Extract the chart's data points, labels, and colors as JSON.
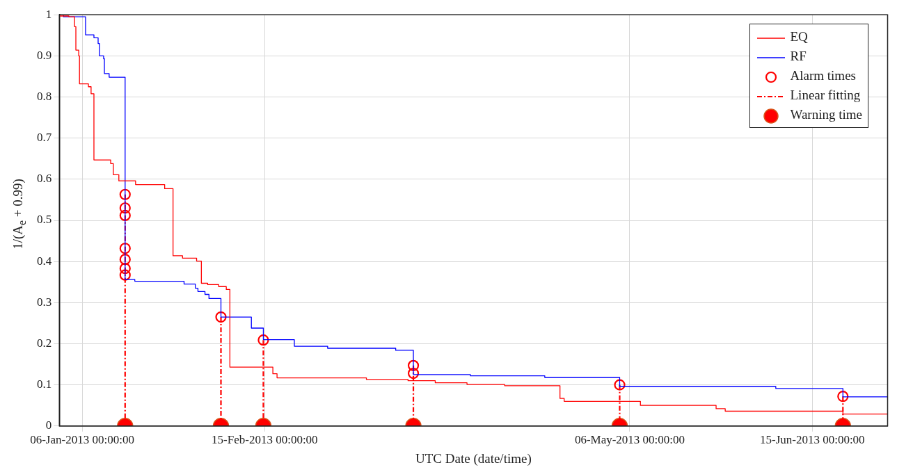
{
  "chart_data": {
    "type": "step",
    "xlabel": "UTC Date (date/time)",
    "ylabel": "1/(A$_{e}$ + 0.99)",
    "xlim": [
      "2013-01-01",
      "2013-07-01T12:00"
    ],
    "xticks": [
      {
        "value": "2013-01-06",
        "label": "06-Jan-2013 00:00:00"
      },
      {
        "value": "2013-02-15",
        "label": "15-Feb-2013 00:00:00"
      },
      {
        "value": "2013-05-06",
        "label": "06-May-2013 00:00:00"
      },
      {
        "value": "2013-06-15",
        "label": "15-Jun-2013 00:00:00"
      }
    ],
    "ylim": [
      0,
      1
    ],
    "yticks": [
      0,
      0.1,
      0.2,
      0.3,
      0.4,
      0.5,
      0.6,
      0.7,
      0.8,
      0.9,
      1
    ],
    "grid": true,
    "legend": "top right",
    "marker": "none",
    "series": [
      {
        "name": "EQ",
        "color": "#ff0000",
        "x": [
          "2013-01-01",
          "2013-01-03T02:00",
          "2013-01-04T08:00",
          "2013-01-04T15:00",
          "2013-01-05T06:00",
          "2013-01-05T10:00",
          "2013-01-07T09:00",
          "2013-01-07T23:00",
          "2013-01-08T14:00",
          "2013-01-12T06:00",
          "2013-01-12T20:00",
          "2013-01-14T01:00",
          "2013-01-17T17:00",
          "2013-01-24T02:00",
          "2013-01-25T22:00",
          "2013-01-28",
          "2013-01-31T02:00",
          "2013-02-01T03:00",
          "2013-02-02T12:00",
          "2013-02-04T22:00",
          "2013-02-06T14:00",
          "2013-02-07T09:00",
          "2013-02-16T19:00",
          "2013-02-17T17:00",
          "2013-03-09T07:00",
          "2013-03-18T10:00",
          "2013-03-24T09:00",
          "2013-03-31T08:00",
          "2013-04-08T14:00",
          "2013-04-20T17:00",
          "2013-04-21T15:00",
          "2013-05-08T08:00",
          "2013-05-24T22:00",
          "2013-05-26T22:00",
          "2013-06-21T17:00",
          "2013-07-01T12:00"
        ],
        "values": [
          0.997,
          0.995,
          0.971,
          0.914,
          0.9,
          0.832,
          0.825,
          0.808,
          0.647,
          0.638,
          0.611,
          0.596,
          0.587,
          0.577,
          0.414,
          0.408,
          0.401,
          0.347,
          0.344,
          0.339,
          0.332,
          0.143,
          0.127,
          0.117,
          0.113,
          0.11,
          0.105,
          0.101,
          0.098,
          0.067,
          0.06,
          0.05,
          0.042,
          0.036,
          0.029,
          0.029
        ]
      },
      {
        "name": "RF",
        "color": "#0000ff",
        "x": [
          "2013-01-01",
          "2013-01-01T22:00",
          "2013-01-06T18:00",
          "2013-01-08T14:00",
          "2013-01-09T12:00",
          "2013-01-09T19:00",
          "2013-01-10T17:00",
          "2013-01-10T21:00",
          "2013-01-11T22:00",
          "2013-01-15T10:00",
          "2013-01-17T13:00",
          "2013-01-28T08:00",
          "2013-01-30T19:00",
          "2013-01-31T09:00",
          "2013-02-01T22:00",
          "2013-02-02T19:00",
          "2013-02-05T10:00",
          "2013-02-12T02:00",
          "2013-02-14T17:00",
          "2013-02-21T12:00",
          "2013-02-28T19:00",
          "2013-03-15T17:00",
          "2013-03-19T14:00",
          "2013-04-01T02:00",
          "2013-04-17T09:00",
          "2013-05-03T19:00",
          "2013-06-07",
          "2013-06-21T17:00",
          "2013-07-01T12:00"
        ],
        "values": [
          1.0,
          0.995,
          0.951,
          0.944,
          0.93,
          0.9,
          0.893,
          0.857,
          0.848,
          0.356,
          0.352,
          0.345,
          0.335,
          0.327,
          0.32,
          0.31,
          0.265,
          0.238,
          0.21,
          0.194,
          0.189,
          0.184,
          0.125,
          0.122,
          0.118,
          0.096,
          0.091,
          0.071,
          0.071
        ]
      },
      {
        "name": "Alarm times",
        "type": "scatter",
        "color": "#ff0000",
        "marker": "circle",
        "x": [
          "2013-01-15T10:00",
          "2013-01-15T10:00",
          "2013-01-15T10:00",
          "2013-01-15T10:00",
          "2013-01-15T10:00",
          "2013-01-15T10:00",
          "2013-01-15T10:00",
          "2013-02-05T10:00",
          "2013-02-14T17:00",
          "2013-03-19T14:00",
          "2013-03-19T14:00",
          "2013-05-03T19:00",
          "2013-06-21T17:00"
        ],
        "values": [
          0.563,
          0.53,
          0.512,
          0.432,
          0.405,
          0.383,
          0.367,
          0.265,
          0.209,
          0.147,
          0.128,
          0.1,
          0.072
        ]
      },
      {
        "name": "Linear fitting",
        "type": "line",
        "color": "#ff0000",
        "line_style": "dashed",
        "x": [
          "2013-01-15T10:00",
          "2013-01-15T10:00"
        ],
        "values": [
          0.563,
          0
        ]
      },
      {
        "type": "line",
        "color": "#ff0000",
        "line_style": "dashed",
        "x": [
          "2013-02-05T10:00",
          "2013-02-05T10:00"
        ],
        "values": [
          0.265,
          0
        ]
      },
      {
        "type": "line",
        "color": "#ff0000",
        "line_style": "dashed",
        "x": [
          "2013-02-14T17:00",
          "2013-02-14T17:00"
        ],
        "values": [
          0.209,
          0
        ]
      },
      {
        "type": "line",
        "color": "#ff0000",
        "line_style": "dashed",
        "x": [
          "2013-03-19T14:00",
          "2013-03-19T14:00"
        ],
        "values": [
          0.147,
          0
        ]
      },
      {
        "type": "line",
        "color": "#ff0000",
        "line_style": "dashed",
        "x": [
          "2013-05-03T19:00",
          "2013-05-03T19:00"
        ],
        "values": [
          0.1,
          0
        ]
      },
      {
        "type": "line",
        "color": "#ff0000",
        "line_style": "dashed",
        "x": [
          "2013-06-21T17:00",
          "2013-06-21T17:00"
        ],
        "values": [
          0.072,
          0
        ]
      },
      {
        "name": "Warning time",
        "type": "scatter",
        "color": "#ff0000",
        "marker": "circle",
        "x": [
          "2013-01-15T10:00",
          "2013-02-05T10:00",
          "2013-02-14T17:00",
          "2013-03-19T14:00",
          "2013-05-03T19:00",
          "2013-06-21T17:00"
        ],
        "values": [
          0,
          0,
          0,
          0,
          0,
          0
        ]
      }
    ]
  }
}
